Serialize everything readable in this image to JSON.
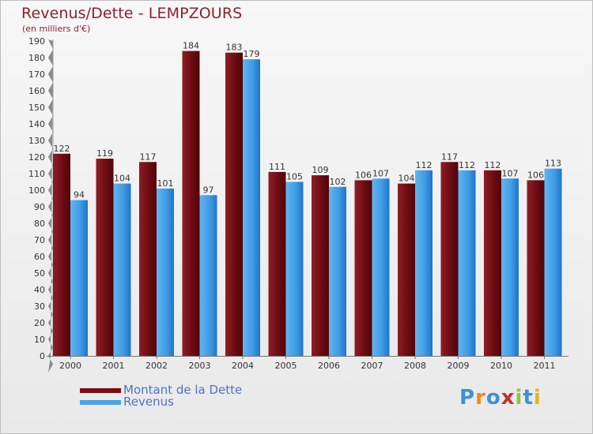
{
  "chart_data": {
    "type": "bar",
    "title": "Revenus/Dette - LEMPZOURS",
    "subtitle": "(en milliers d'€)",
    "categories": [
      "2000",
      "2001",
      "2002",
      "2003",
      "2004",
      "2005",
      "2006",
      "2007",
      "2008",
      "2009",
      "2010",
      "2011"
    ],
    "series": [
      {
        "name": "Montant de la Dette",
        "color": "#7a0c14",
        "values": [
          122,
          119,
          117,
          184,
          183,
          111,
          109,
          106,
          104,
          117,
          112,
          106
        ]
      },
      {
        "name": "Revenus",
        "color": "#4aa3e6",
        "values": [
          94,
          104,
          101,
          97,
          179,
          105,
          102,
          107,
          112,
          112,
          107,
          113
        ]
      }
    ],
    "ylim": [
      0,
      190
    ],
    "ytick_step": 10,
    "grid": false,
    "legend_position": "bottom-left"
  },
  "legend": {
    "debt_label": "Montant de la Dette",
    "revenue_label": "Revenus",
    "debt_color": "#7a0c14",
    "revenue_color": "#4aa3e6"
  },
  "logo": {
    "text": "Proxiti"
  }
}
